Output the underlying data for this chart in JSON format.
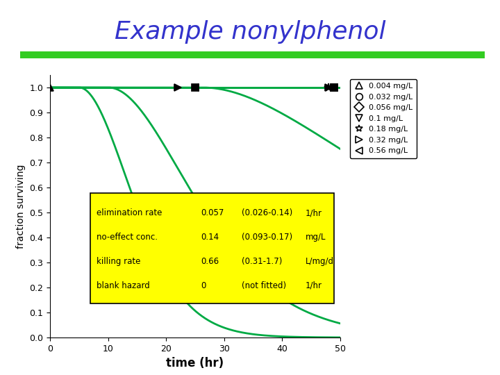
{
  "title": "Example nonylphenol",
  "title_color": "#3333cc",
  "title_fontsize": 26,
  "xlabel": "time (hr)",
  "ylabel": "fraction surviving",
  "xlim": [
    0,
    50
  ],
  "ylim": [
    0,
    1.05
  ],
  "background_color": "#ffffff",
  "line_color": "#00aa44",
  "green_bar_color": "#33cc22",
  "yticks": [
    0,
    0.1,
    0.2,
    0.3,
    0.4,
    0.5,
    0.6,
    0.7,
    0.8,
    0.9,
    1
  ],
  "xticks": [
    0,
    10,
    20,
    30,
    40,
    50
  ],
  "legend_labels": [
    "0.004 mg/L",
    "0.032 mg/L",
    "0.056 mg/L",
    "0.1 mg/L",
    "0.18 mg/L",
    "0.32 mg/L",
    "0.56 mg/L"
  ],
  "legend_markers": [
    "^",
    "o",
    "D",
    "v",
    "*",
    ">",
    "<"
  ],
  "table_bg": "#ffff00",
  "table_rows": [
    [
      "elimination rate",
      "0.057",
      "(0.026-0.14)",
      "1/hr"
    ],
    [
      "no-effect conc.",
      "0.14",
      "(0.093-0.17)",
      "mg/L"
    ],
    [
      "killing rate",
      "0.66",
      "(0.31-1.7)",
      "L/mg/d"
    ],
    [
      "blank hazard",
      "0",
      "(not fitted)",
      "1/hr"
    ]
  ],
  "concentrations": [
    0.004,
    0.032,
    0.056,
    0.1,
    0.18,
    0.32,
    0.56
  ],
  "ke": 0.057,
  "NEC": 0.14,
  "b": 0.66
}
